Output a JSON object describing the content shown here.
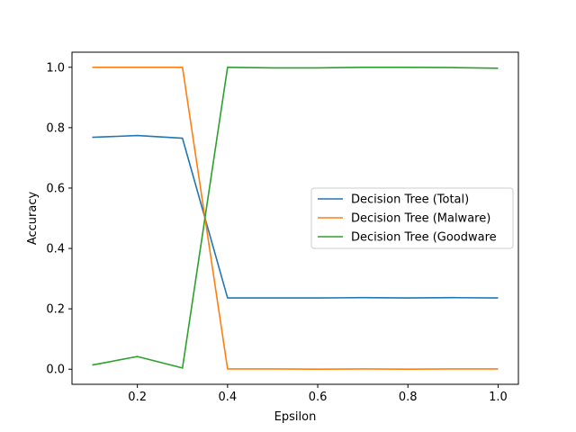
{
  "chart_data": {
    "type": "line",
    "title": "",
    "xlabel": "Epsilon",
    "ylabel": "Accuracy",
    "xlim": [
      0.055,
      1.045
    ],
    "ylim": [
      -0.05,
      1.05
    ],
    "x_ticks": [
      "0.2",
      "0.4",
      "0.6",
      "0.8",
      "1.0"
    ],
    "y_ticks": [
      "0.0",
      "0.2",
      "0.4",
      "0.6",
      "0.8",
      "1.0"
    ],
    "grid": false,
    "legend_position": "center-right",
    "x": [
      0.1,
      0.2,
      0.3,
      0.4,
      0.5,
      0.6,
      0.7,
      0.8,
      0.9,
      1.0
    ],
    "series": [
      {
        "name": "Decision Tree (Total)",
        "color": "#1f77b4",
        "values": [
          0.768,
          0.774,
          0.765,
          0.236,
          0.236,
          0.236,
          0.237,
          0.236,
          0.237,
          0.236
        ]
      },
      {
        "name": "Decision Tree (Malware)",
        "color": "#ff7f0e",
        "values": [
          1.0,
          1.0,
          1.0,
          0.001,
          0.001,
          0.0,
          0.001,
          0.0,
          0.001,
          0.001
        ]
      },
      {
        "name": "Decision Tree (Goodware",
        "color": "#2ca02c",
        "values": [
          0.014,
          0.042,
          0.004,
          1.0,
          0.998,
          0.998,
          1.0,
          1.0,
          0.999,
          0.997
        ]
      }
    ]
  }
}
